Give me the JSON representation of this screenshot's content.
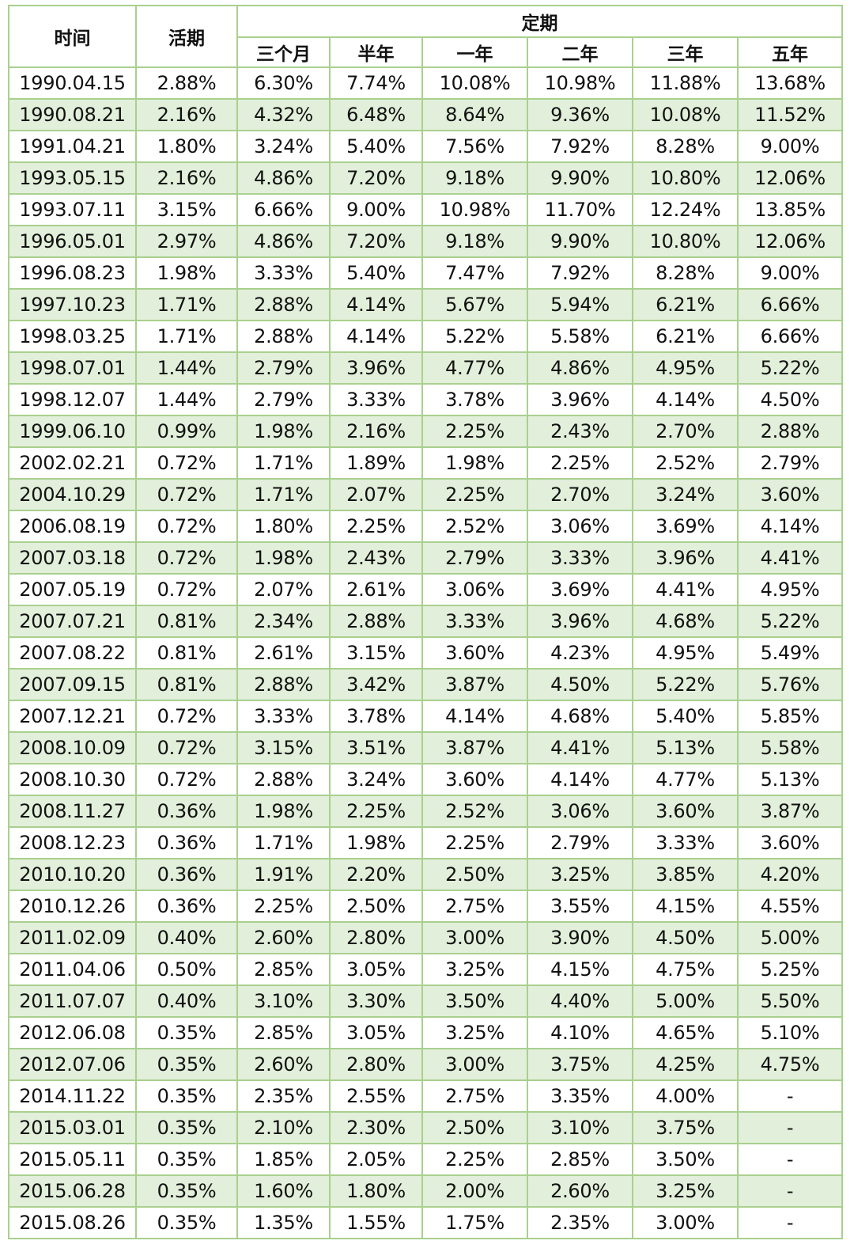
{
  "table": {
    "headers": {
      "time": "时间",
      "current": "活期",
      "fixed_group": "定期",
      "fixed_terms": [
        "三个月",
        "半年",
        "一年",
        "二年",
        "三年",
        "五年"
      ]
    },
    "rows": [
      [
        "1990.04.15",
        "2.88%",
        "6.30%",
        "7.74%",
        "10.08%",
        "10.98%",
        "11.88%",
        "13.68%"
      ],
      [
        "1990.08.21",
        "2.16%",
        "4.32%",
        "6.48%",
        "8.64%",
        "9.36%",
        "10.08%",
        "11.52%"
      ],
      [
        "1991.04.21",
        "1.80%",
        "3.24%",
        "5.40%",
        "7.56%",
        "7.92%",
        "8.28%",
        "9.00%"
      ],
      [
        "1993.05.15",
        "2.16%",
        "4.86%",
        "7.20%",
        "9.18%",
        "9.90%",
        "10.80%",
        "12.06%"
      ],
      [
        "1993.07.11",
        "3.15%",
        "6.66%",
        "9.00%",
        "10.98%",
        "11.70%",
        "12.24%",
        "13.85%"
      ],
      [
        "1996.05.01",
        "2.97%",
        "4.86%",
        "7.20%",
        "9.18%",
        "9.90%",
        "10.80%",
        "12.06%"
      ],
      [
        "1996.08.23",
        "1.98%",
        "3.33%",
        "5.40%",
        "7.47%",
        "7.92%",
        "8.28%",
        "9.00%"
      ],
      [
        "1997.10.23",
        "1.71%",
        "2.88%",
        "4.14%",
        "5.67%",
        "5.94%",
        "6.21%",
        "6.66%"
      ],
      [
        "1998.03.25",
        "1.71%",
        "2.88%",
        "4.14%",
        "5.22%",
        "5.58%",
        "6.21%",
        "6.66%"
      ],
      [
        "1998.07.01",
        "1.44%",
        "2.79%",
        "3.96%",
        "4.77%",
        "4.86%",
        "4.95%",
        "5.22%"
      ],
      [
        "1998.12.07",
        "1.44%",
        "2.79%",
        "3.33%",
        "3.78%",
        "3.96%",
        "4.14%",
        "4.50%"
      ],
      [
        "1999.06.10",
        "0.99%",
        "1.98%",
        "2.16%",
        "2.25%",
        "2.43%",
        "2.70%",
        "2.88%"
      ],
      [
        "2002.02.21",
        "0.72%",
        "1.71%",
        "1.89%",
        "1.98%",
        "2.25%",
        "2.52%",
        "2.79%"
      ],
      [
        "2004.10.29",
        "0.72%",
        "1.71%",
        "2.07%",
        "2.25%",
        "2.70%",
        "3.24%",
        "3.60%"
      ],
      [
        "2006.08.19",
        "0.72%",
        "1.80%",
        "2.25%",
        "2.52%",
        "3.06%",
        "3.69%",
        "4.14%"
      ],
      [
        "2007.03.18",
        "0.72%",
        "1.98%",
        "2.43%",
        "2.79%",
        "3.33%",
        "3.96%",
        "4.41%"
      ],
      [
        "2007.05.19",
        "0.72%",
        "2.07%",
        "2.61%",
        "3.06%",
        "3.69%",
        "4.41%",
        "4.95%"
      ],
      [
        "2007.07.21",
        "0.81%",
        "2.34%",
        "2.88%",
        "3.33%",
        "3.96%",
        "4.68%",
        "5.22%"
      ],
      [
        "2007.08.22",
        "0.81%",
        "2.61%",
        "3.15%",
        "3.60%",
        "4.23%",
        "4.95%",
        "5.49%"
      ],
      [
        "2007.09.15",
        "0.81%",
        "2.88%",
        "3.42%",
        "3.87%",
        "4.50%",
        "5.22%",
        "5.76%"
      ],
      [
        "2007.12.21",
        "0.72%",
        "3.33%",
        "3.78%",
        "4.14%",
        "4.68%",
        "5.40%",
        "5.85%"
      ],
      [
        "2008.10.09",
        "0.72%",
        "3.15%",
        "3.51%",
        "3.87%",
        "4.41%",
        "5.13%",
        "5.58%"
      ],
      [
        "2008.10.30",
        "0.72%",
        "2.88%",
        "3.24%",
        "3.60%",
        "4.14%",
        "4.77%",
        "5.13%"
      ],
      [
        "2008.11.27",
        "0.36%",
        "1.98%",
        "2.25%",
        "2.52%",
        "3.06%",
        "3.60%",
        "3.87%"
      ],
      [
        "2008.12.23",
        "0.36%",
        "1.71%",
        "1.98%",
        "2.25%",
        "2.79%",
        "3.33%",
        "3.60%"
      ],
      [
        "2010.10.20",
        "0.36%",
        "1.91%",
        "2.20%",
        "2.50%",
        "3.25%",
        "3.85%",
        "4.20%"
      ],
      [
        "2010.12.26",
        "0.36%",
        "2.25%",
        "2.50%",
        "2.75%",
        "3.55%",
        "4.15%",
        "4.55%"
      ],
      [
        "2011.02.09",
        "0.40%",
        "2.60%",
        "2.80%",
        "3.00%",
        "3.90%",
        "4.50%",
        "5.00%"
      ],
      [
        "2011.04.06",
        "0.50%",
        "2.85%",
        "3.05%",
        "3.25%",
        "4.15%",
        "4.75%",
        "5.25%"
      ],
      [
        "2011.07.07",
        "0.40%",
        "3.10%",
        "3.30%",
        "3.50%",
        "4.40%",
        "5.00%",
        "5.50%"
      ],
      [
        "2012.06.08",
        "0.35%",
        "2.85%",
        "3.05%",
        "3.25%",
        "4.10%",
        "4.65%",
        "5.10%"
      ],
      [
        "2012.07.06",
        "0.35%",
        "2.60%",
        "2.80%",
        "3.00%",
        "3.75%",
        "4.25%",
        "4.75%"
      ],
      [
        "2014.11.22",
        "0.35%",
        "2.35%",
        "2.55%",
        "2.75%",
        "3.35%",
        "4.00%",
        "-"
      ],
      [
        "2015.03.01",
        "0.35%",
        "2.10%",
        "2.30%",
        "2.50%",
        "3.10%",
        "3.75%",
        "-"
      ],
      [
        "2015.05.11",
        "0.35%",
        "1.85%",
        "2.05%",
        "2.25%",
        "2.85%",
        "3.50%",
        "-"
      ],
      [
        "2015.06.28",
        "0.35%",
        "1.60%",
        "1.80%",
        "2.00%",
        "2.60%",
        "3.25%",
        "-"
      ],
      [
        "2015.08.26",
        "0.35%",
        "1.35%",
        "1.55%",
        "1.75%",
        "2.35%",
        "3.00%",
        "-"
      ]
    ]
  },
  "colors": {
    "border": "#a9d08e",
    "stripe": "#e2efda",
    "background": "#ffffff"
  }
}
